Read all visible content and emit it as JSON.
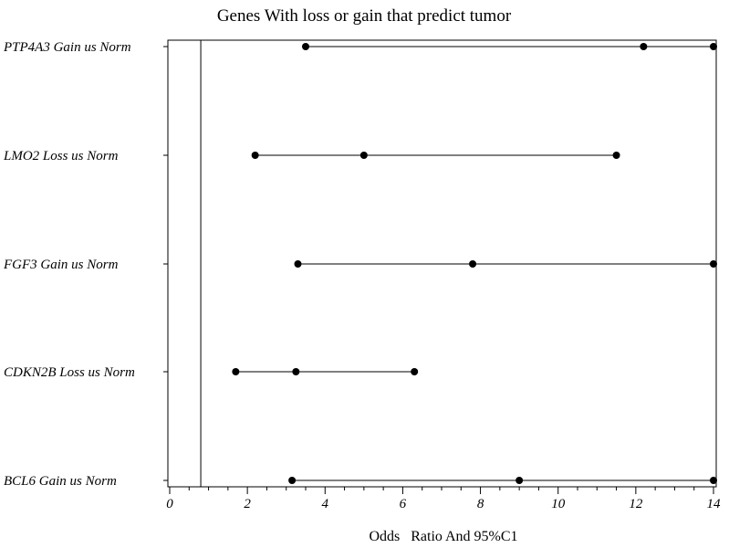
{
  "chart_data": {
    "type": "forest",
    "title": "Genes With loss or gain that predict tumor",
    "xlabel": "Odds   Ratio And 95%C1",
    "ylabel": "",
    "xlim": [
      0,
      14
    ],
    "xticks": [
      0,
      2,
      4,
      6,
      8,
      10,
      12,
      14
    ],
    "reference_line": 0.8,
    "grid": false,
    "legend": "none",
    "rows": [
      {
        "label": "PTP4A3 Gain  us Norm",
        "lower": 3.5,
        "estimate": 12.2,
        "upper": 14
      },
      {
        "label": "LMO2 Loss  us Norm",
        "lower": 2.2,
        "estimate": 5.0,
        "upper": 11.5
      },
      {
        "label": "FGF3  Gain  us Norm",
        "lower": 3.3,
        "estimate": 7.8,
        "upper": 14
      },
      {
        "label": "CDKN2B Loss  us Norm",
        "lower": 1.7,
        "estimate": 3.25,
        "upper": 6.3
      },
      {
        "label": "BCL6  Gain  us Norm",
        "lower": 3.15,
        "estimate": 9.0,
        "upper": 14
      }
    ]
  }
}
